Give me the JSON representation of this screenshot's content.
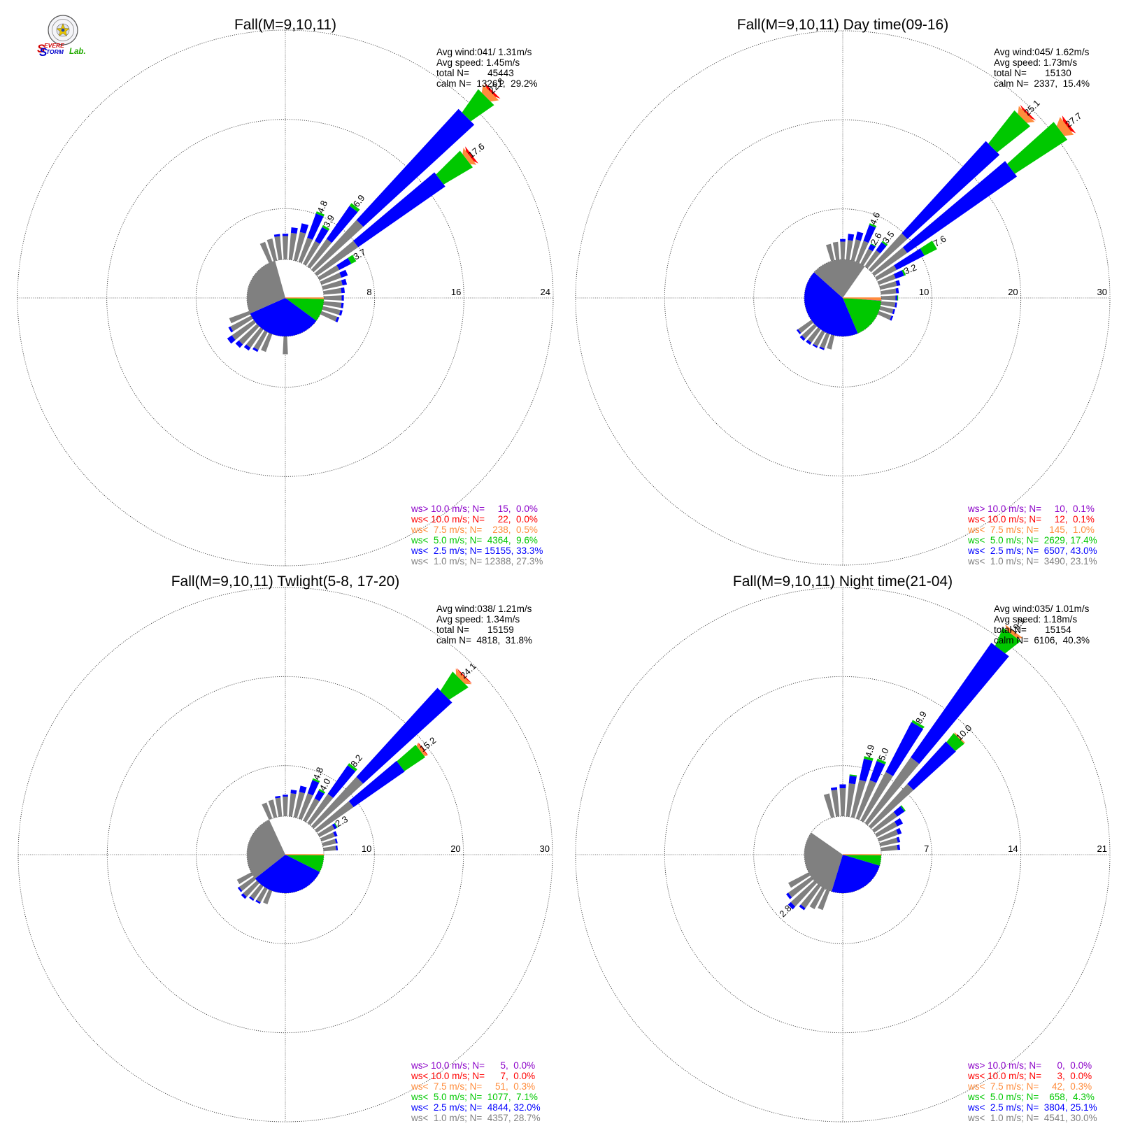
{
  "logo": {
    "text_s1": "S",
    "text_evere": "EVERE",
    "text_s2": "S",
    "text_torm": "TORM",
    "text_lab": "Lab."
  },
  "chart_data": [
    {
      "type": "wind-rose",
      "title": "Fall(M=9,10,11)",
      "rmax": 24,
      "ring_labels": [
        8,
        16,
        24
      ],
      "stats": [
        "Avg wind:041/ 1.31m/s",
        "Avg speed: 1.45m/s",
        "total N=       45443",
        "calm N=  13261,  29.2%"
      ],
      "calm_pie": {
        "gray": 27.3,
        "blue": 33.3,
        "green": 9.6,
        "orange": 0.5,
        "red": 0.0,
        "purple": 0.0
      },
      "petals": [
        {
          "dir": 22.5,
          "total": 4.8,
          "label": "4.8",
          "stack": [
            2.3,
            2.3,
            0.2
          ]
        },
        {
          "dir": 30,
          "total": 3.9,
          "label": "3.9",
          "stack": [
            2.3,
            1.4,
            0.2
          ]
        },
        {
          "dir": 37.5,
          "total": 6.9,
          "label": "6.9",
          "stack": [
            3.0,
            3.6,
            0.3
          ]
        },
        {
          "dir": 45,
          "total": 22.8,
          "label": "22.8",
          "stack": [
            6.0,
            13.5,
            2.5,
            0.6,
            0.2
          ]
        },
        {
          "dir": 52.5,
          "total": 17.6,
          "label": "17.6",
          "stack": [
            4.5,
            9.5,
            3.0,
            0.4,
            0.2
          ]
        },
        {
          "dir": 60,
          "total": 3.7,
          "label": "3.7",
          "stack": [
            2.0,
            1.2,
            0.5
          ]
        },
        {
          "dir": 67.5,
          "total": 2.6,
          "stack": [
            1.9,
            0.6
          ]
        },
        {
          "dir": 75,
          "total": 2.2,
          "stack": [
            1.8,
            0.4
          ]
        },
        {
          "dir": 82.5,
          "total": 2.0,
          "stack": [
            1.6,
            0.3
          ]
        },
        {
          "dir": 90,
          "total": 1.9,
          "stack": [
            1.6,
            0.2
          ]
        },
        {
          "dir": 97.5,
          "total": 1.8,
          "stack": [
            1.6,
            0.2
          ]
        },
        {
          "dir": 105,
          "total": 1.8,
          "stack": [
            1.6,
            0.2
          ]
        },
        {
          "dir": 112.5,
          "total": 1.7,
          "stack": [
            1.5,
            0.2
          ]
        },
        {
          "dir": 180,
          "total": 1.7,
          "stack": [
            1.6
          ]
        },
        {
          "dir": 202.5,
          "total": 1.8,
          "stack": [
            1.7
          ]
        },
        {
          "dir": 210,
          "total": 2.0,
          "stack": [
            1.8,
            0.2
          ]
        },
        {
          "dir": 217.5,
          "total": 2.3,
          "stack": [
            2.0,
            0.3
          ]
        },
        {
          "dir": 225,
          "total": 2.7,
          "stack": [
            2.2,
            0.4
          ]
        },
        {
          "dir": 232.5,
          "total": 3.0,
          "stack": [
            2.4,
            0.5
          ]
        },
        {
          "dir": 240,
          "total": 2.3,
          "stack": [
            2.1,
            0.2
          ]
        },
        {
          "dir": 247.5,
          "total": 2.0,
          "stack": [
            1.9
          ]
        },
        {
          "dir": 337.5,
          "total": 2.0,
          "stack": [
            1.9
          ]
        },
        {
          "dir": 345,
          "total": 2.2,
          "stack": [
            2.0
          ]
        },
        {
          "dir": 352.5,
          "total": 2.4,
          "stack": [
            2.1,
            0.2
          ]
        },
        {
          "dir": 360,
          "total": 2.4,
          "stack": [
            2.1,
            0.2
          ]
        },
        {
          "dir": 7.5,
          "total": 3.0,
          "stack": [
            2.4,
            0.5
          ]
        },
        {
          "dir": 15,
          "total": 3.5,
          "stack": [
            2.6,
            0.8
          ]
        }
      ],
      "legend": [
        {
          "color": "#8b00c8",
          "text": "ws> 10.0 m/s; N=     15,  0.0%"
        },
        {
          "color": "#ff0000",
          "text": "ws< 10.0 m/s; N=     22,  0.0%"
        },
        {
          "color": "#ff8c3c",
          "text": "ws<  7.5 m/s; N=    238,  0.5%"
        },
        {
          "color": "#00c800",
          "text": "ws<  5.0 m/s; N=  4364,  9.6%"
        },
        {
          "color": "#0000ff",
          "text": "ws<  2.5 m/s; N= 15155, 33.3%"
        },
        {
          "color": "#808080",
          "text": "ws<  1.0 m/s; N= 12388, 27.3%"
        }
      ]
    },
    {
      "type": "wind-rose",
      "title": "Fall(M=9,10,11) Day time(09-16)",
      "rmax": 30,
      "ring_labels": [
        10,
        20,
        30
      ],
      "stats": [
        "Avg wind:045/ 1.62m/s",
        "Avg speed: 1.73m/s",
        "total N=       15130",
        "calm N=  2337,  15.4%"
      ],
      "calm_pie": {
        "gray": 23.1,
        "blue": 43.0,
        "green": 17.4,
        "orange": 1.0,
        "red": 0.1,
        "purple": 0.1
      },
      "petals": [
        {
          "dir": 22.5,
          "total": 4.6,
          "label": "4.6",
          "stack": [
            2.5,
            1.9,
            0.2
          ]
        },
        {
          "dir": 30,
          "total": 2.6,
          "label": "2.6",
          "stack": [
            1.9,
            0.6,
            0.1
          ]
        },
        {
          "dir": 37.5,
          "total": 3.5,
          "label": "3.5",
          "stack": [
            2.2,
            1.1,
            0.2
          ]
        },
        {
          "dir": 45,
          "total": 25.1,
          "label": "25.1",
          "stack": [
            5.5,
            14.0,
            4.7,
            0.7,
            0.2
          ]
        },
        {
          "dir": 52.5,
          "total": 27.7,
          "label": "27.7",
          "stack": [
            4.5,
            15.0,
            7.0,
            0.9,
            0.3
          ]
        },
        {
          "dir": 60,
          "total": 7.6,
          "label": "7.6",
          "stack": [
            2.5,
            3.5,
            1.6
          ]
        },
        {
          "dir": 67.5,
          "total": 3.2,
          "label": "3.2",
          "stack": [
            2.0,
            1.0,
            0.2
          ]
        },
        {
          "dir": 75,
          "total": 2.3,
          "stack": [
            1.9,
            0.4
          ]
        },
        {
          "dir": 82.5,
          "total": 2.0,
          "stack": [
            1.7,
            0.3
          ]
        },
        {
          "dir": 90,
          "total": 1.9,
          "stack": [
            1.6,
            0.2,
            0.1
          ]
        },
        {
          "dir": 97.5,
          "total": 1.8,
          "stack": [
            1.6,
            0.2
          ]
        },
        {
          "dir": 105,
          "total": 1.7,
          "stack": [
            1.5,
            0.2
          ]
        },
        {
          "dir": 112.5,
          "total": 1.7,
          "stack": [
            1.5,
            0.2
          ]
        },
        {
          "dir": 195,
          "total": 1.7,
          "stack": [
            1.6
          ]
        },
        {
          "dir": 202.5,
          "total": 1.9,
          "stack": [
            1.7,
            0.2
          ]
        },
        {
          "dir": 210,
          "total": 2.0,
          "stack": [
            1.8,
            0.2
          ]
        },
        {
          "dir": 217.5,
          "total": 2.1,
          "stack": [
            1.8,
            0.3
          ]
        },
        {
          "dir": 225,
          "total": 2.2,
          "stack": [
            1.9,
            0.3
          ]
        },
        {
          "dir": 232.5,
          "total": 2.0,
          "stack": [
            1.8,
            0.2
          ]
        },
        {
          "dir": 345,
          "total": 2.0,
          "stack": [
            1.9
          ]
        },
        {
          "dir": 352.5,
          "total": 2.2,
          "stack": [
            2.0
          ]
        },
        {
          "dir": 360,
          "total": 2.4,
          "stack": [
            2.0,
            0.3
          ]
        },
        {
          "dir": 7.5,
          "total": 3.0,
          "stack": [
            2.2,
            0.7
          ]
        },
        {
          "dir": 15,
          "total": 3.4,
          "stack": [
            2.4,
            0.9
          ]
        }
      ],
      "legend": [
        {
          "color": "#8b00c8",
          "text": "ws> 10.0 m/s; N=     10,  0.1%"
        },
        {
          "color": "#ff0000",
          "text": "ws< 10.0 m/s; N=     12,  0.1%"
        },
        {
          "color": "#ff8c3c",
          "text": "ws<  7.5 m/s; N=    145,  1.0%"
        },
        {
          "color": "#00c800",
          "text": "ws<  5.0 m/s; N=  2629, 17.4%"
        },
        {
          "color": "#0000ff",
          "text": "ws<  2.5 m/s; N=  6507, 43.0%"
        },
        {
          "color": "#808080",
          "text": "ws<  1.0 m/s; N=  3490, 23.1%"
        }
      ]
    },
    {
      "type": "wind-rose",
      "title": "Fall(M=9,10,11) Twlight(5-8, 17-20)",
      "rmax": 30,
      "ring_labels": [
        10,
        20,
        30
      ],
      "stats": [
        "Avg wind:038/ 1.21m/s",
        "Avg speed: 1.34m/s",
        "total N=       15159",
        "calm N=  4818,  31.8%"
      ],
      "calm_pie": {
        "gray": 28.7,
        "blue": 32.0,
        "green": 7.1,
        "orange": 0.3,
        "red": 0.0,
        "purple": 0.0
      },
      "petals": [
        {
          "dir": 22.5,
          "total": 4.8,
          "label": "4.8",
          "stack": [
            3.0,
            1.6,
            0.2
          ]
        },
        {
          "dir": 30,
          "total": 4.0,
          "label": "4.0",
          "stack": [
            2.8,
            1.0,
            0.2
          ]
        },
        {
          "dir": 37.5,
          "total": 8.2,
          "label": "8.2",
          "stack": [
            4.0,
            3.9,
            0.3
          ]
        },
        {
          "dir": 45,
          "total": 24.1,
          "label": "24.1",
          "stack": [
            7.5,
            13.5,
            2.5,
            0.5,
            0.1
          ]
        },
        {
          "dir": 52.5,
          "total": 15.2,
          "label": "15.2",
          "stack": [
            5.0,
            7.0,
            2.8,
            0.3,
            0.1
          ]
        },
        {
          "dir": 60,
          "total": 2.3,
          "label": "2.3",
          "stack": [
            1.9,
            0.3,
            0.1
          ]
        },
        {
          "dir": 67.5,
          "total": 1.9,
          "stack": [
            1.6,
            0.3
          ]
        },
        {
          "dir": 75,
          "total": 1.7,
          "stack": [
            1.5,
            0.2
          ]
        },
        {
          "dir": 82.5,
          "total": 1.6,
          "stack": [
            1.4,
            0.2
          ]
        },
        {
          "dir": 202.5,
          "total": 1.7,
          "stack": [
            1.6
          ]
        },
        {
          "dir": 210,
          "total": 1.9,
          "stack": [
            1.7,
            0.2
          ]
        },
        {
          "dir": 217.5,
          "total": 2.0,
          "stack": [
            1.8,
            0.2
          ]
        },
        {
          "dir": 225,
          "total": 2.4,
          "stack": [
            2.1,
            0.3
          ]
        },
        {
          "dir": 232.5,
          "total": 2.2,
          "stack": [
            2.0,
            0.2
          ]
        },
        {
          "dir": 240,
          "total": 1.9,
          "stack": [
            1.8
          ]
        },
        {
          "dir": 337.5,
          "total": 2.0,
          "stack": [
            1.9
          ]
        },
        {
          "dir": 345,
          "total": 2.1,
          "stack": [
            2.0
          ]
        },
        {
          "dir": 352.5,
          "total": 2.3,
          "stack": [
            2.1,
            0.2
          ]
        },
        {
          "dir": 360,
          "total": 2.4,
          "stack": [
            2.2,
            0.2
          ]
        },
        {
          "dir": 7.5,
          "total": 3.0,
          "stack": [
            2.6,
            0.4
          ]
        },
        {
          "dir": 15,
          "total": 3.6,
          "stack": [
            2.9,
            0.7
          ]
        }
      ],
      "legend": [
        {
          "color": "#8b00c8",
          "text": "ws> 10.0 m/s; N=      5,  0.0%"
        },
        {
          "color": "#ff0000",
          "text": "ws< 10.0 m/s; N=      7,  0.0%"
        },
        {
          "color": "#ff8c3c",
          "text": "ws<  7.5 m/s; N=     51,  0.3%"
        },
        {
          "color": "#00c800",
          "text": "ws<  5.0 m/s; N=  1077,  7.1%"
        },
        {
          "color": "#0000ff",
          "text": "ws<  2.5 m/s; N=  4844, 32.0%"
        },
        {
          "color": "#808080",
          "text": "ws<  1.0 m/s; N=  4357, 28.7%"
        }
      ]
    },
    {
      "type": "wind-rose",
      "title": "Fall(M=9,10,11) Night time(21-04)",
      "rmax": 21,
      "ring_labels": [
        7,
        14,
        21
      ],
      "stats": [
        "Avg wind:035/ 1.01m/s",
        "Avg speed: 1.18m/s",
        "total N=       15154",
        "calm N=  6106,  40.3%"
      ],
      "calm_pie": {
        "gray": 30.0,
        "blue": 25.1,
        "green": 4.3,
        "orange": 0.3,
        "red": 0.0,
        "purple": 0.0
      },
      "petals": [
        {
          "dir": 15,
          "total": 4.9,
          "label": "4.9",
          "stack": [
            3.0,
            1.7,
            0.2
          ]
        },
        {
          "dir": 22.5,
          "total": 5.0,
          "label": "5.0",
          "stack": [
            3.2,
            1.6,
            0.2
          ]
        },
        {
          "dir": 30,
          "total": 8.9,
          "label": "8.9",
          "stack": [
            4.3,
            4.4,
            0.2
          ]
        },
        {
          "dir": 37.5,
          "total": 19.1,
          "label": "19.1",
          "stack": [
            6.3,
            11.0,
            1.5,
            0.3
          ]
        },
        {
          "dir": 45,
          "total": 10.0,
          "label": "10.0",
          "stack": [
            4.5,
            4.5,
            0.9,
            0.1
          ]
        },
        {
          "dir": 52.5,
          "total": 3.0,
          "stack": [
            2.2,
            0.7,
            0.1
          ]
        },
        {
          "dir": 60,
          "total": 2.3,
          "stack": [
            1.8,
            0.5
          ]
        },
        {
          "dir": 67.5,
          "total": 1.9,
          "stack": [
            1.6,
            0.3
          ]
        },
        {
          "dir": 75,
          "total": 1.6,
          "stack": [
            1.4,
            0.2
          ]
        },
        {
          "dir": 82.5,
          "total": 1.5,
          "stack": [
            1.3,
            0.2
          ]
        },
        {
          "dir": 202.5,
          "total": 1.7,
          "stack": [
            1.6
          ]
        },
        {
          "dir": 210,
          "total": 1.9,
          "stack": [
            1.8
          ]
        },
        {
          "dir": 217.5,
          "total": 2.3,
          "stack": [
            2.1,
            0.2
          ]
        },
        {
          "dir": 225,
          "total": 2.8,
          "label": "2.8",
          "stack": [
            2.5,
            0.3
          ]
        },
        {
          "dir": 232.5,
          "total": 2.4,
          "stack": [
            2.2,
            0.2
          ]
        },
        {
          "dir": 240,
          "total": 1.9,
          "stack": [
            1.8
          ]
        },
        {
          "dir": 345,
          "total": 2.0,
          "stack": [
            1.9
          ]
        },
        {
          "dir": 352.5,
          "total": 2.3,
          "stack": [
            2.1,
            0.2
          ]
        },
        {
          "dir": 360,
          "total": 2.5,
          "stack": [
            2.2,
            0.3
          ]
        },
        {
          "dir": 7.5,
          "total": 3.3,
          "stack": [
            2.6,
            0.6,
            0.1
          ]
        }
      ],
      "legend": [
        {
          "color": "#8b00c8",
          "text": "ws> 10.0 m/s; N=      0,  0.0%"
        },
        {
          "color": "#ff0000",
          "text": "ws< 10.0 m/s; N=      3,  0.0%"
        },
        {
          "color": "#ff8c3c",
          "text": "ws<  7.5 m/s; N=     42,  0.3%"
        },
        {
          "color": "#00c800",
          "text": "ws<  5.0 m/s; N=    658,  4.3%"
        },
        {
          "color": "#0000ff",
          "text": "ws<  2.5 m/s; N=  3804, 25.1%"
        },
        {
          "color": "#808080",
          "text": "ws<  1.0 m/s; N=  4541, 30.0%"
        }
      ]
    }
  ]
}
